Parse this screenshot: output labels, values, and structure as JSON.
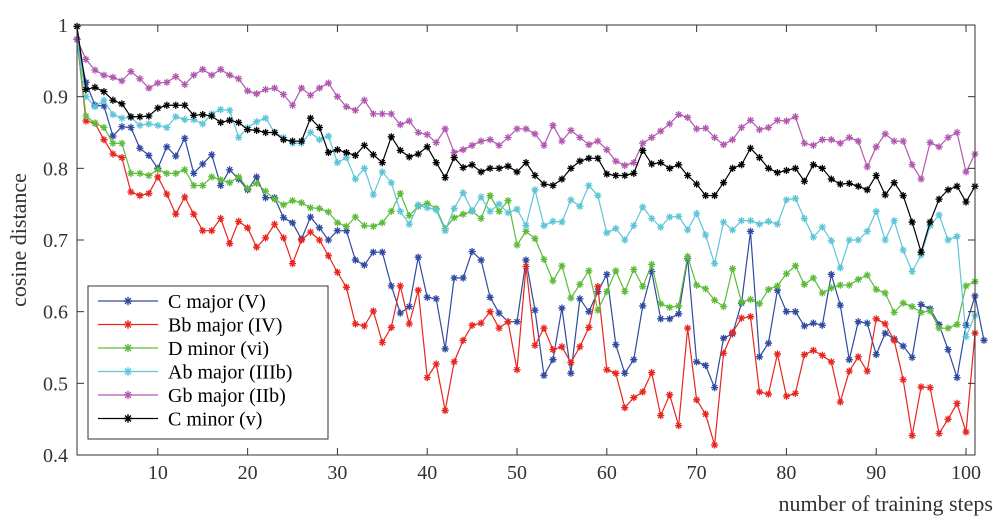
{
  "chart_data": {
    "type": "line",
    "title": "",
    "xlabel": "number of training steps",
    "ylabel": "cosine distance",
    "xlim": [
      1,
      101
    ],
    "ylim": [
      0.4,
      1.0
    ],
    "xticks": [
      10,
      20,
      30,
      40,
      50,
      60,
      70,
      80,
      90,
      100
    ],
    "yticks": [
      0.4,
      0.5,
      0.6,
      0.7,
      0.8,
      0.9,
      1.0
    ],
    "xtick_labels": [
      "10",
      "20",
      "30",
      "40",
      "50",
      "60",
      "70",
      "80",
      "90",
      "100"
    ],
    "ytick_labels": [
      "0.4",
      "0.5",
      "0.6",
      "0.7",
      "0.8",
      "0.9",
      "1"
    ],
    "grid": false,
    "legend_position": "bottom-left",
    "marker": "asterisk",
    "series": [
      {
        "name": "C major (V)",
        "color": "#2f4aa0",
        "values": [
          0.98,
          0.92,
          0.888,
          0.887,
          0.845,
          0.858,
          0.857,
          0.828,
          0.818,
          0.8,
          0.83,
          0.817,
          0.842,
          0.793,
          0.806,
          0.819,
          0.776,
          0.798,
          0.785,
          0.77,
          0.788,
          0.759,
          0.759,
          0.731,
          0.724,
          0.701,
          0.732,
          0.717,
          0.7,
          0.713,
          0.713,
          0.672,
          0.665,
          0.683,
          0.683,
          0.636,
          0.598,
          0.607,
          0.676,
          0.62,
          0.618,
          0.548,
          0.647,
          0.647,
          0.684,
          0.672,
          0.62,
          0.598,
          0.586,
          0.586,
          0.672,
          0.602,
          0.511,
          0.533,
          0.605,
          0.514,
          0.618,
          0.6,
          0.628,
          0.652,
          0.554,
          0.514,
          0.533,
          0.608,
          0.656,
          0.59,
          0.59,
          0.597,
          0.674,
          0.53,
          0.525,
          0.494,
          0.563,
          0.569,
          0.612,
          0.712,
          0.537,
          0.556,
          0.63,
          0.6,
          0.6,
          0.58,
          0.584,
          0.581,
          0.652,
          0.609,
          0.533,
          0.586,
          0.584,
          0.54,
          0.57,
          0.562,
          0.552,
          0.536,
          0.61,
          0.604,
          0.582,
          0.547,
          0.508,
          0.581,
          0.622,
          0.56
        ]
      },
      {
        "name": "Bb major (IV)",
        "color": "#e8251e",
        "values": [
          0.98,
          0.866,
          0.863,
          0.84,
          0.82,
          0.815,
          0.767,
          0.762,
          0.765,
          0.788,
          0.764,
          0.736,
          0.76,
          0.736,
          0.713,
          0.713,
          0.73,
          0.695,
          0.726,
          0.717,
          0.69,
          0.703,
          0.722,
          0.703,
          0.667,
          0.7,
          0.711,
          0.7,
          0.678,
          0.655,
          0.634,
          0.583,
          0.58,
          0.601,
          0.557,
          0.578,
          0.636,
          0.583,
          0.63,
          0.508,
          0.527,
          0.462,
          0.53,
          0.56,
          0.581,
          0.584,
          0.6,
          0.577,
          0.586,
          0.519,
          0.663,
          0.553,
          0.577,
          0.547,
          0.551,
          0.529,
          0.551,
          0.578,
          0.635,
          0.519,
          0.514,
          0.466,
          0.48,
          0.488,
          0.515,
          0.455,
          0.484,
          0.441,
          0.577,
          0.477,
          0.457,
          0.414,
          0.542,
          0.571,
          0.591,
          0.593,
          0.488,
          0.485,
          0.541,
          0.482,
          0.486,
          0.54,
          0.546,
          0.539,
          0.53,
          0.474,
          0.517,
          0.537,
          0.517,
          0.59,
          0.583,
          0.56,
          0.505,
          0.427,
          0.495,
          0.494,
          0.43,
          0.45,
          0.472,
          0.432,
          0.57
        ]
      },
      {
        "name": "D minor (vi)",
        "color": "#5dbb3a",
        "values": [
          0.98,
          0.873,
          0.863,
          0.857,
          0.835,
          0.835,
          0.793,
          0.793,
          0.79,
          0.798,
          0.793,
          0.793,
          0.798,
          0.776,
          0.776,
          0.788,
          0.784,
          0.78,
          0.788,
          0.772,
          0.779,
          0.768,
          0.757,
          0.749,
          0.755,
          0.752,
          0.745,
          0.744,
          0.739,
          0.724,
          0.719,
          0.732,
          0.72,
          0.719,
          0.724,
          0.74,
          0.765,
          0.734,
          0.747,
          0.751,
          0.744,
          0.716,
          0.731,
          0.736,
          0.74,
          0.73,
          0.762,
          0.74,
          0.755,
          0.693,
          0.712,
          0.702,
          0.673,
          0.643,
          0.664,
          0.619,
          0.638,
          0.657,
          0.602,
          0.628,
          0.657,
          0.628,
          0.659,
          0.635,
          0.666,
          0.611,
          0.606,
          0.608,
          0.677,
          0.637,
          0.632,
          0.616,
          0.607,
          0.66,
          0.613,
          0.617,
          0.611,
          0.631,
          0.636,
          0.653,
          0.664,
          0.638,
          0.647,
          0.626,
          0.633,
          0.637,
          0.637,
          0.645,
          0.651,
          0.631,
          0.626,
          0.599,
          0.612,
          0.607,
          0.599,
          0.601,
          0.577,
          0.577,
          0.582,
          0.636,
          0.642
        ]
      },
      {
        "name": "Ab major (IIIb)",
        "color": "#5ec5d8",
        "values": [
          0.98,
          0.9,
          0.886,
          0.895,
          0.875,
          0.87,
          0.871,
          0.86,
          0.862,
          0.86,
          0.857,
          0.872,
          0.868,
          0.868,
          0.862,
          0.876,
          0.882,
          0.881,
          0.843,
          0.857,
          0.865,
          0.87,
          0.85,
          0.843,
          0.835,
          0.835,
          0.85,
          0.84,
          0.845,
          0.808,
          0.815,
          0.785,
          0.8,
          0.763,
          0.795,
          0.78,
          0.74,
          0.722,
          0.749,
          0.745,
          0.742,
          0.713,
          0.744,
          0.766,
          0.741,
          0.76,
          0.74,
          0.75,
          0.738,
          0.743,
          0.72,
          0.77,
          0.72,
          0.726,
          0.725,
          0.756,
          0.747,
          0.776,
          0.762,
          0.71,
          0.716,
          0.7,
          0.72,
          0.746,
          0.73,
          0.718,
          0.732,
          0.733,
          0.714,
          0.737,
          0.707,
          0.667,
          0.725,
          0.714,
          0.727,
          0.727,
          0.722,
          0.726,
          0.722,
          0.756,
          0.758,
          0.73,
          0.704,
          0.718,
          0.699,
          0.661,
          0.7,
          0.7,
          0.712,
          0.74,
          0.7,
          0.727,
          0.686,
          0.656,
          0.679,
          0.72,
          0.735,
          0.7,
          0.705,
          0.565,
          0.595
        ]
      },
      {
        "name": "Gb major (IIb)",
        "color": "#b159b1",
        "values": [
          0.98,
          0.952,
          0.937,
          0.93,
          0.927,
          0.922,
          0.935,
          0.925,
          0.912,
          0.919,
          0.92,
          0.928,
          0.917,
          0.93,
          0.938,
          0.93,
          0.938,
          0.93,
          0.925,
          0.908,
          0.904,
          0.91,
          0.912,
          0.903,
          0.888,
          0.912,
          0.902,
          0.912,
          0.919,
          0.9,
          0.886,
          0.881,
          0.895,
          0.876,
          0.876,
          0.876,
          0.861,
          0.866,
          0.85,
          0.847,
          0.836,
          0.855,
          0.822,
          0.826,
          0.832,
          0.838,
          0.84,
          0.832,
          0.843,
          0.855,
          0.855,
          0.848,
          0.832,
          0.86,
          0.838,
          0.853,
          0.843,
          0.833,
          0.838,
          0.826,
          0.81,
          0.804,
          0.808,
          0.835,
          0.843,
          0.852,
          0.862,
          0.875,
          0.871,
          0.855,
          0.856,
          0.843,
          0.833,
          0.84,
          0.857,
          0.867,
          0.854,
          0.857,
          0.867,
          0.866,
          0.872,
          0.835,
          0.832,
          0.84,
          0.84,
          0.835,
          0.843,
          0.838,
          0.802,
          0.83,
          0.848,
          0.838,
          0.838,
          0.805,
          0.785,
          0.836,
          0.83,
          0.843,
          0.85,
          0.795,
          0.82
        ]
      },
      {
        "name": "C minor (v)",
        "color": "#000000",
        "values": [
          0.998,
          0.91,
          0.913,
          0.907,
          0.895,
          0.89,
          0.872,
          0.872,
          0.873,
          0.884,
          0.888,
          0.888,
          0.888,
          0.874,
          0.875,
          0.873,
          0.864,
          0.867,
          0.864,
          0.854,
          0.853,
          0.85,
          0.85,
          0.84,
          0.838,
          0.838,
          0.87,
          0.857,
          0.822,
          0.826,
          0.822,
          0.818,
          0.832,
          0.819,
          0.808,
          0.844,
          0.825,
          0.816,
          0.82,
          0.83,
          0.808,
          0.787,
          0.815,
          0.801,
          0.805,
          0.795,
          0.8,
          0.8,
          0.803,
          0.795,
          0.808,
          0.79,
          0.778,
          0.776,
          0.785,
          0.8,
          0.81,
          0.814,
          0.814,
          0.792,
          0.79,
          0.79,
          0.793,
          0.825,
          0.806,
          0.808,
          0.8,
          0.805,
          0.79,
          0.778,
          0.762,
          0.762,
          0.78,
          0.8,
          0.805,
          0.828,
          0.815,
          0.8,
          0.794,
          0.797,
          0.8,
          0.782,
          0.805,
          0.8,
          0.785,
          0.778,
          0.779,
          0.775,
          0.77,
          0.79,
          0.763,
          0.78,
          0.762,
          0.725,
          0.683,
          0.725,
          0.757,
          0.77,
          0.775,
          0.753,
          0.775
        ]
      }
    ]
  }
}
